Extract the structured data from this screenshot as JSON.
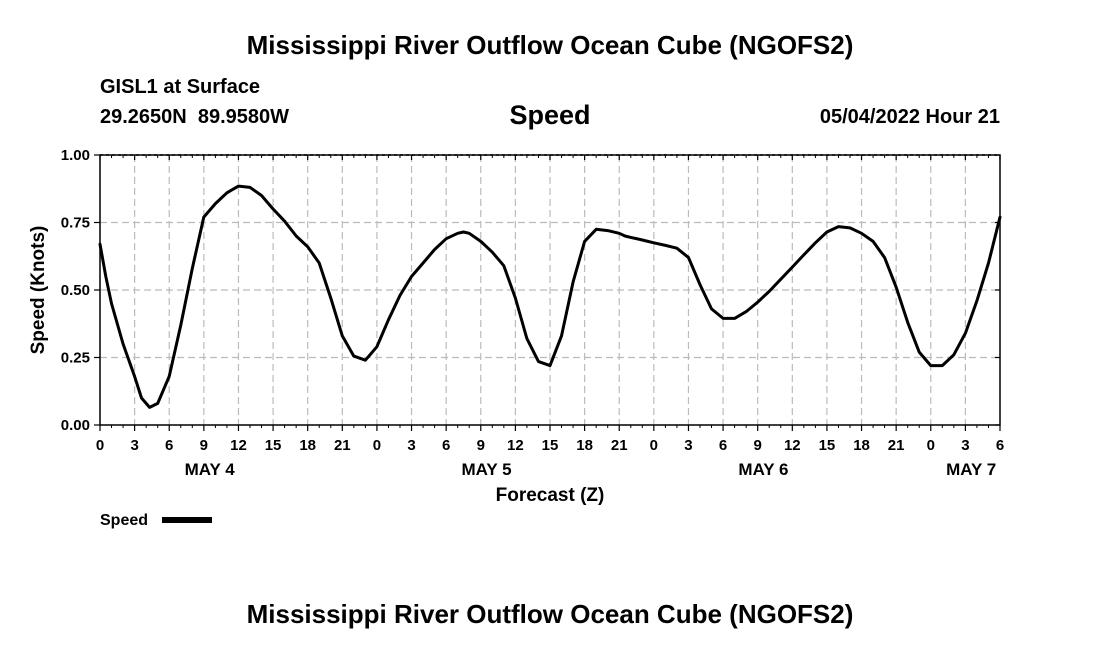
{
  "header": {
    "title": "Mississippi River Outflow Ocean Cube (NGOFS2)",
    "station": "GISL1 at Surface",
    "coords": "29.2650N  89.9580W",
    "variable": "Speed",
    "datetime": "05/04/2022 Hour 21"
  },
  "footer": {
    "title": "Mississippi River Outflow Ocean Cube (NGOFS2)"
  },
  "chart_data": {
    "type": "line",
    "title": "Speed",
    "xlabel": "Forecast (Z)",
    "ylabel": "Speed (Knots)",
    "xlim": [
      0,
      78
    ],
    "ylim": [
      0,
      1.0
    ],
    "grid": true,
    "legend": "bottom-left",
    "y_ticks": [
      "0.00",
      "0.25",
      "0.50",
      "0.75",
      "1.00"
    ],
    "x_ticks": [
      "0",
      "3",
      "6",
      "9",
      "12",
      "15",
      "18",
      "21",
      "0",
      "3",
      "6",
      "9",
      "12",
      "15",
      "18",
      "21",
      "0",
      "3",
      "6",
      "9",
      "12",
      "15",
      "18",
      "21",
      "0",
      "3",
      "6"
    ],
    "day_labels": [
      {
        "label": "MAY 4",
        "x": 9.5
      },
      {
        "label": "MAY 5",
        "x": 33.5
      },
      {
        "label": "MAY 6",
        "x": 57.5
      },
      {
        "label": "MAY 7",
        "x": 75.5
      }
    ],
    "series": [
      {
        "name": "Speed",
        "color": "#000000",
        "x": [
          0,
          0.5,
          1,
          2,
          3,
          3.6,
          4.3,
          5,
          6,
          7,
          8,
          9,
          10,
          11,
          12,
          13,
          14,
          15,
          16,
          17,
          18,
          19,
          20,
          21,
          22,
          23,
          24,
          25,
          26,
          27,
          28,
          29,
          30,
          31,
          31.5,
          32,
          33,
          34,
          35,
          36,
          37,
          38,
          39,
          40,
          41,
          42,
          43,
          44,
          45,
          45.5,
          46,
          47,
          48,
          49,
          50,
          51,
          52,
          53,
          54,
          55,
          56,
          57,
          58,
          59,
          60,
          61,
          62,
          63,
          64,
          65,
          66,
          67,
          68,
          69,
          70,
          71,
          72,
          73,
          74,
          75,
          76,
          77,
          78
        ],
        "values": [
          0.67,
          0.55,
          0.45,
          0.3,
          0.18,
          0.1,
          0.065,
          0.08,
          0.18,
          0.37,
          0.58,
          0.77,
          0.82,
          0.86,
          0.885,
          0.88,
          0.85,
          0.8,
          0.755,
          0.7,
          0.66,
          0.6,
          0.47,
          0.33,
          0.255,
          0.24,
          0.29,
          0.39,
          0.48,
          0.55,
          0.6,
          0.65,
          0.69,
          0.71,
          0.715,
          0.71,
          0.68,
          0.64,
          0.59,
          0.47,
          0.32,
          0.235,
          0.22,
          0.33,
          0.53,
          0.68,
          0.725,
          0.72,
          0.71,
          0.7,
          0.695,
          0.685,
          0.675,
          0.665,
          0.655,
          0.62,
          0.52,
          0.43,
          0.395,
          0.395,
          0.42,
          0.455,
          0.495,
          0.54,
          0.585,
          0.63,
          0.675,
          0.715,
          0.735,
          0.73,
          0.71,
          0.68,
          0.62,
          0.51,
          0.38,
          0.27,
          0.22,
          0.22,
          0.26,
          0.34,
          0.46,
          0.6,
          0.77
        ]
      }
    ]
  }
}
